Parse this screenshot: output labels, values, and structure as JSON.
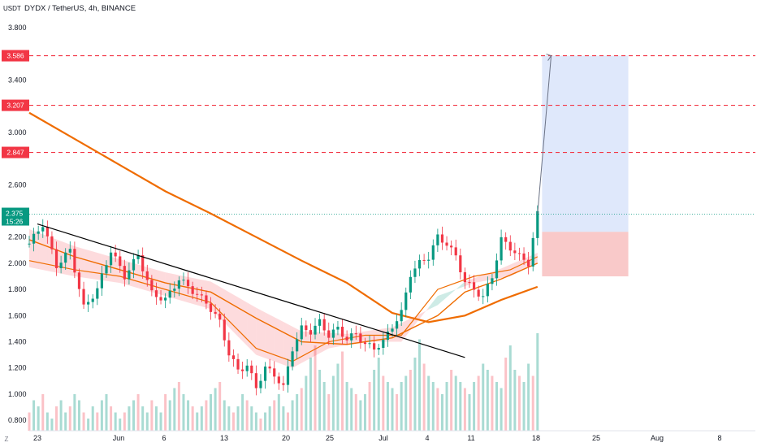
{
  "header": {
    "symbol_title": "DYDX / TetherUS, 4h, BINANCE",
    "unit_label": "USDT",
    "tz_icon_label": "Z"
  },
  "chart_data": {
    "type": "candlestick",
    "title": "DYDX / TetherUS, 4h, BINANCE",
    "yaxis": {
      "label": "USDT",
      "range": [
        0.72,
        3.9
      ],
      "ticks": [
        "3.800",
        "3.400",
        "3.000",
        "2.600",
        "2.200",
        "2.000",
        "1.800",
        "1.600",
        "1.400",
        "1.200",
        "1.000",
        "0.800"
      ]
    },
    "xaxis": {
      "ticks": [
        "23",
        "Jun",
        "6",
        "13",
        "20",
        "25",
        "Jul",
        "4",
        "11",
        "18",
        "25",
        "Aug",
        "8"
      ]
    },
    "current_price": {
      "value": "2.375",
      "countdown": "15:26",
      "color": "#089981"
    },
    "levels": [
      {
        "value": "3.586",
        "color": "#f23645",
        "style": "dashed"
      },
      {
        "value": "3.207",
        "color": "#f23645",
        "style": "dashed"
      },
      {
        "value": "2.847",
        "color": "#f23645",
        "style": "dashed"
      }
    ],
    "position_tool": {
      "entry": 2.24,
      "target": 3.586,
      "stop": 1.9,
      "profit_color": "#c9d8f8",
      "loss_color": "#f7b7b7"
    },
    "price_path": [
      [
        0,
        2.15
      ],
      [
        3,
        2.3
      ],
      [
        6,
        1.98
      ],
      [
        9,
        2.1
      ],
      [
        12,
        1.66
      ],
      [
        15,
        1.8
      ],
      [
        18,
        2.1
      ],
      [
        21,
        1.9
      ],
      [
        24,
        2.06
      ],
      [
        27,
        1.77
      ],
      [
        30,
        1.72
      ],
      [
        33,
        1.88
      ],
      [
        36,
        1.79
      ],
      [
        39,
        1.7
      ],
      [
        42,
        1.55
      ],
      [
        44,
        1.31
      ],
      [
        46,
        1.18
      ],
      [
        48,
        1.22
      ],
      [
        50,
        1.05
      ],
      [
        52,
        1.2
      ],
      [
        54,
        1.15
      ],
      [
        56,
        1.05
      ],
      [
        58,
        1.35
      ],
      [
        60,
        1.5
      ],
      [
        62,
        1.48
      ],
      [
        64,
        1.55
      ],
      [
        66,
        1.45
      ],
      [
        68,
        1.5
      ],
      [
        70,
        1.42
      ],
      [
        72,
        1.46
      ],
      [
        74,
        1.38
      ],
      [
        76,
        1.35
      ],
      [
        78,
        1.4
      ],
      [
        80,
        1.52
      ],
      [
        82,
        1.62
      ],
      [
        84,
        1.92
      ],
      [
        86,
        2.0
      ],
      [
        88,
        2.05
      ],
      [
        90,
        2.2
      ],
      [
        92,
        2.15
      ],
      [
        94,
        2.05
      ],
      [
        96,
        1.86
      ],
      [
        98,
        1.8
      ],
      [
        100,
        1.74
      ],
      [
        102,
        1.9
      ],
      [
        104,
        2.18
      ],
      [
        106,
        2.12
      ],
      [
        108,
        2.05
      ],
      [
        110,
        2.0
      ],
      [
        112,
        2.375
      ]
    ],
    "trendline": {
      "start": [
        0,
        2.3
      ],
      "end": [
        96,
        1.28
      ],
      "color": "#000000"
    },
    "moving_averages": [
      {
        "points": [
          [
            0,
            3.15
          ],
          [
            10,
            2.95
          ],
          [
            20,
            2.75
          ],
          [
            30,
            2.55
          ],
          [
            40,
            2.38
          ],
          [
            50,
            2.2
          ],
          [
            60,
            2.02
          ],
          [
            70,
            1.85
          ],
          [
            80,
            1.62
          ],
          [
            88,
            1.55
          ],
          [
            96,
            1.6
          ],
          [
            104,
            1.72
          ],
          [
            112,
            1.82
          ]
        ],
        "color": "#ef6c00",
        "width": 2.2
      },
      {
        "points": [
          [
            0,
            2.18
          ],
          [
            10,
            2.05
          ],
          [
            20,
            1.95
          ],
          [
            30,
            1.85
          ],
          [
            40,
            1.78
          ],
          [
            50,
            1.58
          ],
          [
            60,
            1.4
          ],
          [
            70,
            1.38
          ],
          [
            80,
            1.43
          ],
          [
            90,
            1.6
          ],
          [
            96,
            1.78
          ],
          [
            104,
            1.88
          ],
          [
            112,
            2.0
          ]
        ],
        "color": "#ef6c00",
        "width": 1.4
      },
      {
        "points": [
          [
            0,
            2.02
          ],
          [
            10,
            1.95
          ],
          [
            20,
            1.9
          ],
          [
            30,
            1.8
          ],
          [
            40,
            1.7
          ],
          [
            50,
            1.35
          ],
          [
            58,
            1.25
          ],
          [
            66,
            1.4
          ],
          [
            74,
            1.45
          ],
          [
            82,
            1.45
          ],
          [
            90,
            1.8
          ],
          [
            98,
            1.9
          ],
          [
            106,
            1.95
          ],
          [
            112,
            2.05
          ]
        ],
        "color": "#ef6c00",
        "width": 1.2
      }
    ],
    "volume": [
      3,
      5,
      4,
      6,
      3,
      2,
      4,
      5,
      3,
      4,
      6,
      5,
      3,
      2,
      4,
      3,
      5,
      6,
      4,
      3,
      2,
      3,
      4,
      5,
      6,
      4,
      3,
      5,
      4,
      3,
      6,
      5,
      7,
      8,
      6,
      5,
      4,
      3,
      4,
      5,
      6,
      7,
      8,
      5,
      4,
      3,
      4,
      6,
      5,
      4,
      3,
      2,
      3,
      4,
      5,
      6,
      4,
      3,
      5,
      6,
      7,
      9,
      12,
      14,
      10,
      8,
      6,
      9,
      11,
      13,
      8,
      7,
      6,
      5,
      6,
      8,
      10,
      12,
      9,
      8,
      7,
      6,
      8,
      9,
      10,
      12,
      15,
      11,
      9,
      8,
      7,
      6,
      8,
      10,
      9,
      8,
      7,
      6,
      8,
      9,
      11,
      10,
      9,
      8,
      7,
      12,
      14,
      10,
      9,
      8,
      11,
      9,
      16
    ]
  }
}
